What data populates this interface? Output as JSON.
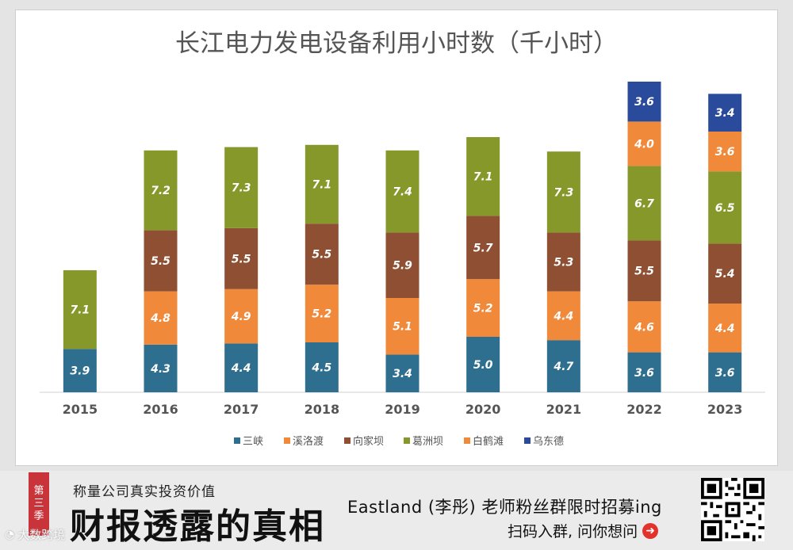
{
  "chart_data": {
    "type": "bar",
    "stacked": true,
    "title": "长江电力发电设备利用小时数（千小时）",
    "categories": [
      "2015",
      "2016",
      "2017",
      "2018",
      "2019",
      "2020",
      "2021",
      "2022",
      "2023"
    ],
    "series": [
      {
        "name": "三峡",
        "color": "#2e6e8e",
        "values": [
          3.9,
          4.3,
          4.4,
          4.5,
          3.4,
          5.0,
          4.7,
          3.6,
          3.6
        ]
      },
      {
        "name": "溪洛渡",
        "color": "#f0893a",
        "values": [
          null,
          4.8,
          4.9,
          5.2,
          5.1,
          5.2,
          4.4,
          4.6,
          4.4
        ]
      },
      {
        "name": "向家坝",
        "color": "#8e4f32",
        "values": [
          null,
          5.5,
          5.5,
          5.5,
          5.9,
          5.7,
          5.3,
          5.5,
          5.4
        ]
      },
      {
        "name": "葛洲坝",
        "color": "#86982a",
        "values": [
          7.1,
          7.2,
          7.3,
          7.1,
          7.4,
          7.1,
          7.3,
          6.7,
          6.5
        ]
      },
      {
        "name": "白鹤滩",
        "color": "#f0893a",
        "values": [
          null,
          null,
          null,
          null,
          null,
          null,
          null,
          4.0,
          3.6
        ]
      },
      {
        "name": "乌东德",
        "color": "#2a4a9c",
        "values": [
          null,
          null,
          null,
          null,
          null,
          null,
          null,
          3.6,
          3.4
        ]
      }
    ],
    "ylim": [
      0,
      30
    ],
    "legend_position": "bottom"
  },
  "footer": {
    "season_label": [
      "第",
      "三",
      "季"
    ],
    "brand_sub": "称量公司真实投资价值",
    "brand_main": "财报透露的真相",
    "promo_line1": "Eastland (李彤) 老师粉丝群限时招募ing",
    "promo_line2": "扫码入群, 问你想问",
    "arrow_icon": "➜",
    "watermark": "大数跨境"
  }
}
